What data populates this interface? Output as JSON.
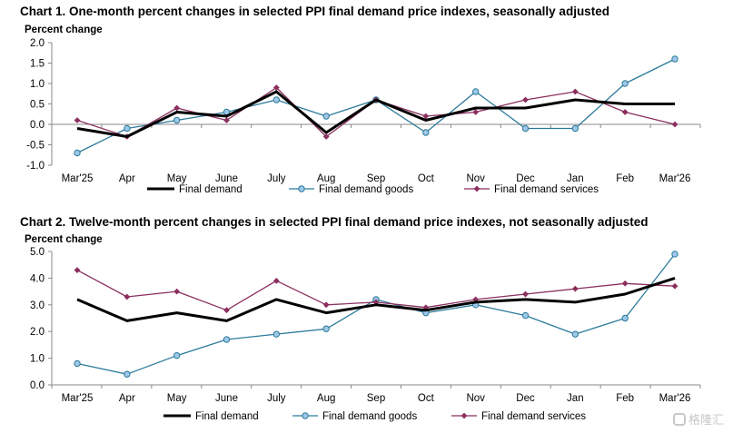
{
  "chart_data": [
    {
      "type": "line",
      "title": "Chart 1. One-month percent changes in selected PPI final demand price indexes, seasonally adjusted",
      "ylabel": "Percent change",
      "categories": [
        "Mar'25",
        "Apr",
        "May",
        "June",
        "July",
        "Aug",
        "Sep",
        "Oct",
        "Nov",
        "Dec",
        "Jan",
        "Feb",
        "Mar'26"
      ],
      "ylim": [
        -1.0,
        2.0
      ],
      "yticks": [
        "-1.0",
        "-0.5",
        "0.0",
        "0.5",
        "1.0",
        "1.5",
        "2.0"
      ],
      "grid": false,
      "legend": "bottom",
      "series": [
        {
          "name": "Final demand",
          "color": "#000000",
          "marker": "none",
          "values": [
            -0.1,
            -0.3,
            0.3,
            0.2,
            0.8,
            -0.2,
            0.6,
            0.1,
            0.4,
            0.4,
            0.6,
            0.5,
            0.5
          ]
        },
        {
          "name": "Final demand goods",
          "color": "#2b7a9a",
          "marker": "circle",
          "fill": "#9ec7e8",
          "values": [
            -0.7,
            -0.1,
            0.1,
            0.3,
            0.6,
            0.2,
            0.6,
            -0.2,
            0.8,
            -0.1,
            -0.1,
            1.0,
            1.6
          ]
        },
        {
          "name": "Final demand services",
          "color": "#8b2f5e",
          "marker": "diamond",
          "fill": "#8b2f5e",
          "values": [
            0.1,
            -0.3,
            0.4,
            0.1,
            0.9,
            -0.3,
            0.6,
            0.2,
            0.3,
            0.6,
            0.8,
            0.3,
            0.0
          ]
        }
      ]
    },
    {
      "type": "line",
      "title": "Chart 2. Twelve-month percent changes in selected PPI final demand price indexes, not seasonally adjusted",
      "ylabel": "Percent change",
      "categories": [
        "Mar'25",
        "Apr",
        "May",
        "June",
        "July",
        "Aug",
        "Sep",
        "Oct",
        "Nov",
        "Dec",
        "Jan",
        "Feb",
        "Mar'26"
      ],
      "ylim": [
        0.0,
        5.0
      ],
      "yticks": [
        "0.0",
        "1.0",
        "2.0",
        "3.0",
        "4.0",
        "5.0"
      ],
      "grid": false,
      "legend": "bottom",
      "series": [
        {
          "name": "Final demand",
          "color": "#000000",
          "marker": "none",
          "values": [
            3.2,
            2.4,
            2.7,
            2.4,
            3.2,
            2.7,
            3.0,
            2.8,
            3.1,
            3.2,
            3.1,
            3.4,
            4.0
          ]
        },
        {
          "name": "Final demand goods",
          "color": "#2b7a9a",
          "marker": "circle",
          "fill": "#9ec7e8",
          "values": [
            0.8,
            0.4,
            1.1,
            1.7,
            1.9,
            2.1,
            3.2,
            2.7,
            3.0,
            2.6,
            1.9,
            2.5,
            4.9
          ]
        },
        {
          "name": "Final demand services",
          "color": "#8b2f5e",
          "marker": "diamond",
          "fill": "#8b2f5e",
          "values": [
            4.3,
            3.3,
            3.5,
            2.8,
            3.9,
            3.0,
            3.1,
            2.9,
            3.2,
            3.4,
            3.6,
            3.8,
            3.7
          ]
        }
      ]
    }
  ],
  "watermark": {
    "text": "格隆汇",
    "icon": "gelonghui-logo-icon"
  }
}
